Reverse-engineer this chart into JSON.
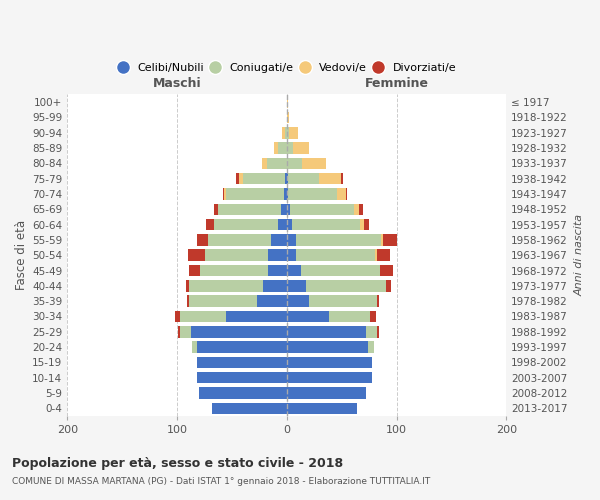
{
  "age_groups": [
    "0-4",
    "5-9",
    "10-14",
    "15-19",
    "20-24",
    "25-29",
    "30-34",
    "35-39",
    "40-44",
    "45-49",
    "50-54",
    "55-59",
    "60-64",
    "65-69",
    "70-74",
    "75-79",
    "80-84",
    "85-89",
    "90-94",
    "95-99",
    "100+"
  ],
  "birth_years": [
    "2013-2017",
    "2008-2012",
    "2003-2007",
    "1998-2002",
    "1993-1997",
    "1988-1992",
    "1983-1987",
    "1978-1982",
    "1973-1977",
    "1968-1972",
    "1963-1967",
    "1958-1962",
    "1953-1957",
    "1948-1952",
    "1943-1947",
    "1938-1942",
    "1933-1937",
    "1928-1932",
    "1923-1927",
    "1918-1922",
    "≤ 1917"
  ],
  "males": {
    "celibi": [
      68,
      80,
      82,
      82,
      82,
      87,
      55,
      27,
      22,
      17,
      17,
      14,
      8,
      5,
      3,
      2,
      0,
      0,
      0,
      0,
      0
    ],
    "coniugati": [
      0,
      0,
      0,
      0,
      4,
      10,
      42,
      62,
      67,
      62,
      58,
      58,
      58,
      58,
      52,
      38,
      18,
      8,
      2,
      0,
      0
    ],
    "vedovi": [
      0,
      0,
      0,
      0,
      0,
      0,
      0,
      0,
      0,
      0,
      0,
      0,
      0,
      0,
      2,
      4,
      5,
      4,
      2,
      0,
      0
    ],
    "divorziati": [
      0,
      0,
      0,
      0,
      0,
      2,
      5,
      2,
      3,
      10,
      15,
      10,
      8,
      3,
      1,
      2,
      0,
      0,
      0,
      0,
      0
    ]
  },
  "females": {
    "nubili": [
      64,
      72,
      78,
      78,
      74,
      72,
      38,
      20,
      17,
      13,
      8,
      8,
      5,
      3,
      1,
      1,
      0,
      0,
      0,
      0,
      0
    ],
    "coniugate": [
      0,
      0,
      0,
      0,
      5,
      10,
      38,
      62,
      73,
      72,
      72,
      78,
      62,
      58,
      45,
      28,
      14,
      6,
      2,
      0,
      0
    ],
    "vedove": [
      0,
      0,
      0,
      0,
      0,
      0,
      0,
      0,
      0,
      0,
      2,
      2,
      3,
      5,
      8,
      20,
      22,
      14,
      8,
      2,
      1
    ],
    "divorziate": [
      0,
      0,
      0,
      0,
      0,
      2,
      5,
      2,
      5,
      12,
      12,
      12,
      5,
      3,
      1,
      2,
      0,
      0,
      0,
      0,
      0
    ]
  },
  "colors": {
    "celibi": "#4472c4",
    "coniugati": "#b8cfa4",
    "vedovi": "#f5c97a",
    "divorziati": "#c0392b"
  },
  "title": "Popolazione per età, sesso e stato civile - 2018",
  "subtitle": "COMUNE DI MASSA MARTANA (PG) - Dati ISTAT 1° gennaio 2018 - Elaborazione TUTTITALIA.IT",
  "xlabel_left": "Maschi",
  "xlabel_right": "Femmine",
  "ylabel_left": "Fasce di età",
  "ylabel_right": "Anni di nascita",
  "xlim": 200,
  "legend_labels": [
    "Celibi/Nubili",
    "Coniugati/e",
    "Vedovi/e",
    "Divorziati/e"
  ],
  "background_color": "#f5f5f5",
  "plot_bg_color": "#ffffff"
}
